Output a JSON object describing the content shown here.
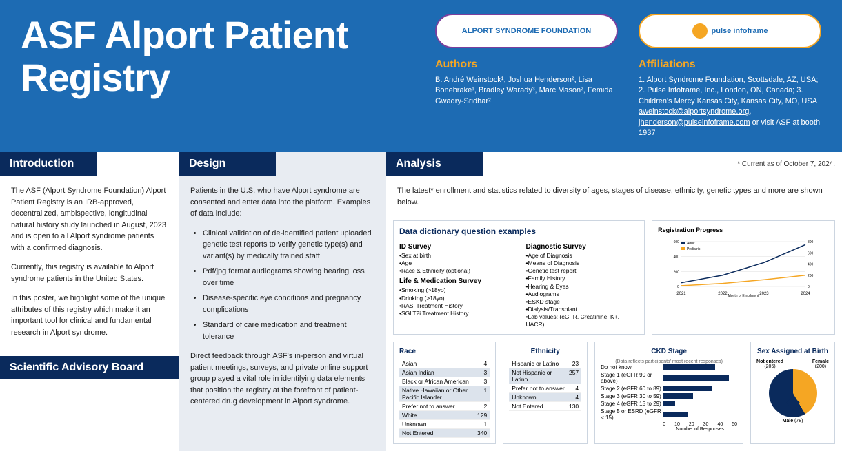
{
  "title": "ASF Alport Patient Registry",
  "logos": {
    "asf_text": "ALPORT SYNDROME FOUNDATION",
    "pi_text": "pulse infoframe"
  },
  "authors": {
    "heading": "Authors",
    "text": "B. André Weinstock¹, Joshua Henderson², Lisa Bonebrake¹, Bradley Warady³, Marc Mason², Femida Gwadry-Sridhar²"
  },
  "affiliations": {
    "heading": "Affiliations",
    "text": "1. Alport Syndrome Foundation, Scottsdale, AZ, USA; 2. Pulse Infoframe, Inc., London, ON, Canada; 3. Children's Mercy Kansas City, Kansas City, MO, USA",
    "email1": "aweinstock@alportsyndrome.org",
    "email2": "jhenderson@pulseinfoframe.com",
    "booth": " or visit ASF at booth 1937"
  },
  "intro": {
    "tab": "Introduction",
    "p1": "The ASF (Alport Syndrome Foundation) Alport Patient Registry is an IRB-approved, decentralized, ambispective, longitudinal natural history study launched in August, 2023 and is open to all Alport syndrome patients with a confirmed diagnosis.",
    "p2": "Currently, this registry is available to Alport syndrome patients in the United States.",
    "p3": "In this poster, we highlight some of the unique attributes of this registry which make it an important tool for clinical and fundamental research in Alport syndrome.",
    "sab_tab": "Scientific Advisory Board"
  },
  "design": {
    "tab": "Design",
    "p1": "Patients in the U.S. who have Alport syndrome are consented and enter data into the platform. Examples of data include:",
    "bullets": [
      "Clinical validation of de-identified patient uploaded genetic test reports to verify genetic type(s) and variant(s) by medically trained staff",
      "Pdf/jpg format audiograms showing hearing loss over time",
      "Disease-specific eye conditions and pregnancy complications",
      "Standard of care medication and treatment tolerance"
    ],
    "p2": "Direct feedback through ASF's in-person and virtual patient meetings, surveys, and private online support group played a vital role in identifying data elements that position the registry at the forefront of patient-centered drug development in Alport syndrome."
  },
  "analysis": {
    "tab": "Analysis",
    "asof": "* Current as of October 7, 2024.",
    "p1": "The latest* enrollment and statistics related to diversity of ages, stages of disease, ethnicity, genetic types and more are shown below.",
    "dd": {
      "title": "Data dictionary question examples",
      "id_survey": {
        "h": "ID Survey",
        "items": [
          "•Sex at birth",
          "•Age",
          "•Race & Ethnicity (optional)"
        ]
      },
      "life": {
        "h": "Life & Medication Survey",
        "items": [
          "•Smoking (>18yo)",
          "•Drinking (>18yo)",
          "•RASi Treatment History",
          "•SGLT2i Treatment History"
        ]
      },
      "diag": {
        "h": "Diagnostic Survey",
        "items": [
          "•Age of Diagnosis",
          "•Means of Diagnosis",
          "•Genetic test report",
          "•Family History",
          "•Hearing & Eyes",
          "•Audiograms",
          "•ESKD stage",
          "•Dialysis/Transplant",
          "•Lab values: (eGFR, Creatinine, K+, UACR)"
        ]
      }
    },
    "reg_chart": {
      "title": "Registration Progress",
      "legend": [
        "Adult",
        "Pediatric"
      ],
      "x_labels": [
        "2021",
        "2022",
        "2023",
        "2024"
      ],
      "y_left_max": 600,
      "y_right_max": 800,
      "adult_color": "#0a2a5c",
      "ped_color": "#f5a623",
      "series_adult": [
        50,
        150,
        320,
        560
      ],
      "series_ped": [
        10,
        40,
        90,
        150
      ]
    },
    "race": {
      "title": "Race",
      "rows": [
        {
          "l": "Asian",
          "v": 4
        },
        {
          "l": "Asian Indian",
          "v": 3
        },
        {
          "l": "Black or African American",
          "v": 3
        },
        {
          "l": "Native Hawaiian or Other Pacific Islander",
          "v": 1
        },
        {
          "l": "Prefer not to answer",
          "v": 2
        },
        {
          "l": "White",
          "v": 129
        },
        {
          "l": "Unknown",
          "v": 1
        },
        {
          "l": "Not Entered",
          "v": 340
        }
      ]
    },
    "ethnicity": {
      "title": "Ethnicity",
      "rows": [
        {
          "l": "Hispanic or Latino",
          "v": 23
        },
        {
          "l": "Not Hispanic or Latino",
          "v": 257
        },
        {
          "l": "Prefer not to answer",
          "v": 4
        },
        {
          "l": "Unknown",
          "v": 4
        },
        {
          "l": "Not Entered",
          "v": 130
        }
      ]
    },
    "ckd": {
      "title": "CKD Stage",
      "sub": "(Data reflects participants' most recent responses)",
      "xlabel": "Number of Responses",
      "xmax": 50,
      "xticks": [
        0,
        10,
        20,
        30,
        40,
        50
      ],
      "bar_color": "#0a2a5c",
      "rows": [
        {
          "l": "Do not know",
          "v": 38
        },
        {
          "l": "Stage 1 (eGFR 90 or above)",
          "v": 48
        },
        {
          "l": "Stage 2 (eGFR 60 to 89)",
          "v": 36
        },
        {
          "l": "Stage 3 (eGFR 30 to 59)",
          "v": 22
        },
        {
          "l": "Stage 4 (eGFR 15 to 29)",
          "v": 9
        },
        {
          "l": "Stage 5 or ESRD (eGFR < 15)",
          "v": 18
        }
      ]
    },
    "sex": {
      "title": "Sex Assigned at Birth",
      "not_entered": {
        "l": "Not entered",
        "v": "(205)"
      },
      "female": {
        "l": "Female",
        "v": "(200)"
      },
      "male": {
        "l": "Male",
        "v": "(78)"
      },
      "colors": {
        "female": "#f5a623",
        "male": "#0a2a5c",
        "ne": "#0a2a5c"
      }
    }
  }
}
